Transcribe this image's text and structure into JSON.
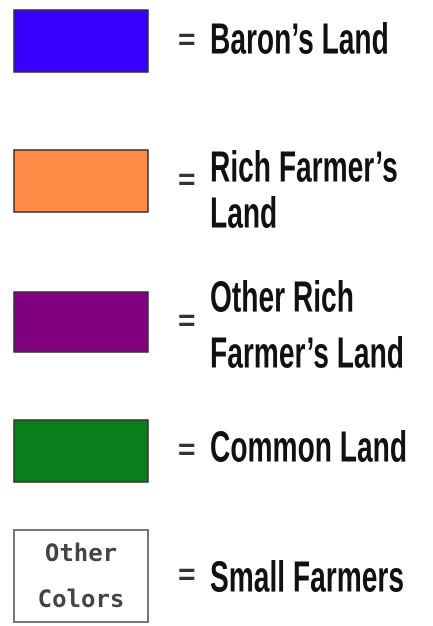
{
  "legend": {
    "separator": "=",
    "items": [
      {
        "color": "#3a00ff",
        "label": [
          "Baron’s Land"
        ]
      },
      {
        "color": "#ff8a45",
        "label": [
          "Rich Farmer’s",
          "Land"
        ]
      },
      {
        "color": "#800080",
        "label": [
          "Other Rich",
          "Farmer’s Land"
        ]
      },
      {
        "color": "#0a7d1c",
        "label": [
          "Common Land"
        ]
      },
      {
        "color": "#ffffff",
        "swatch_text": [
          "Other",
          "Colors"
        ],
        "label": [
          "Small Farmers"
        ]
      }
    ]
  }
}
